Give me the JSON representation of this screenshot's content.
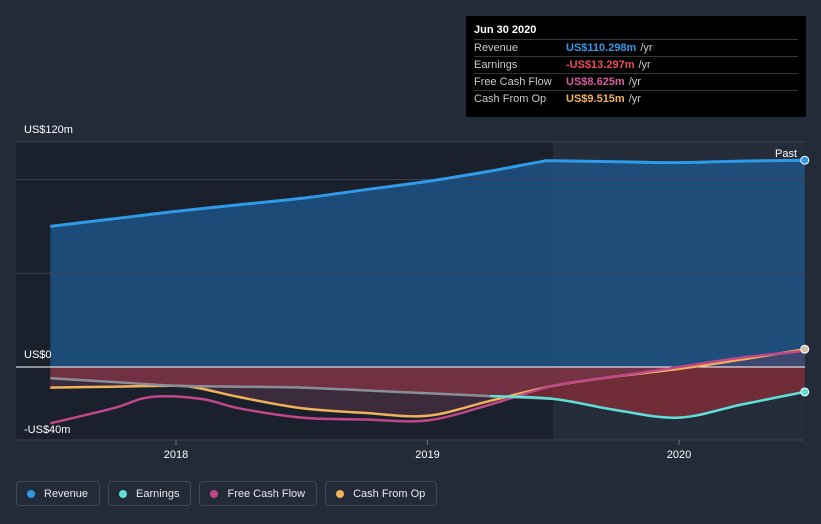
{
  "tooltip": {
    "date": "Jun 30 2020",
    "rows": [
      {
        "name": "Revenue",
        "value": "US$110.298m",
        "unit": "/yr",
        "color": "#2f9ae8"
      },
      {
        "name": "Earnings",
        "value": "-US$13.297m",
        "unit": "/yr",
        "color": "#ef4a5a"
      },
      {
        "name": "Free Cash Flow",
        "value": "US$8.625m",
        "unit": "/yr",
        "color": "#d45fa0"
      },
      {
        "name": "Cash From Op",
        "value": "US$9.515m",
        "unit": "/yr",
        "color": "#f0b35a"
      }
    ]
  },
  "legend": [
    {
      "label": "Revenue",
      "color": "#2f9ae8"
    },
    {
      "label": "Earnings",
      "color": "#5ee0d9"
    },
    {
      "label": "Free Cash Flow",
      "color": "#c2478a"
    },
    {
      "label": "Cash From Op",
      "color": "#f0b35a"
    }
  ],
  "chart_data": {
    "type": "line",
    "y_tick_labels": [
      "US$120m",
      "US$0",
      "-US$40m"
    ],
    "x_tick_labels": [
      "2018",
      "2019",
      "2020"
    ],
    "ylim": [
      -40,
      120
    ],
    "xlim": [
      2017.5,
      2020.5
    ],
    "past_label": "Past",
    "series": [
      {
        "name": "Revenue",
        "color": "#2f9ae8",
        "x": [
          2017.5,
          2017.75,
          2018.0,
          2018.25,
          2018.5,
          2018.75,
          2019.0,
          2019.25,
          2019.45,
          2019.5,
          2019.75,
          2020.0,
          2020.25,
          2020.5
        ],
        "y": [
          75,
          79,
          83,
          86.5,
          90,
          94.5,
          99,
          104.5,
          109.5,
          110,
          109.5,
          109,
          109.8,
          110.3
        ]
      },
      {
        "name": "Earnings",
        "color": "#5ee0d9",
        "x": [
          2017.5,
          2017.75,
          2018.0,
          2018.25,
          2018.5,
          2018.75,
          2019.0,
          2019.25,
          2019.5,
          2019.75,
          2020.0,
          2020.25,
          2020.5
        ],
        "y": [
          -6,
          -8,
          -10,
          -10.5,
          -11,
          -12.5,
          -14,
          -15.5,
          -17,
          -23,
          -27,
          -20,
          -13.3
        ]
      },
      {
        "name": "Free Cash Flow",
        "color": "#c2478a",
        "x": [
          2017.5,
          2017.75,
          2017.9,
          2018.1,
          2018.25,
          2018.5,
          2018.75,
          2019.0,
          2019.25,
          2019.5,
          2019.75,
          2020.0,
          2020.25,
          2020.5
        ],
        "y": [
          -30,
          -22,
          -16,
          -17,
          -22,
          -27,
          -28,
          -28.5,
          -20,
          -10,
          -5,
          0,
          5,
          8.6
        ]
      },
      {
        "name": "Cash From Op",
        "color": "#f0b35a",
        "x": [
          2017.5,
          2017.75,
          2018.0,
          2018.1,
          2018.25,
          2018.5,
          2018.75,
          2019.0,
          2019.25,
          2019.5,
          2019.75,
          2020.0,
          2020.25,
          2020.5
        ],
        "y": [
          -11,
          -10.5,
          -10,
          -11.5,
          -16,
          -22,
          -24.5,
          -26,
          -18,
          -10,
          -5,
          -1,
          4,
          9.5
        ]
      }
    ]
  }
}
